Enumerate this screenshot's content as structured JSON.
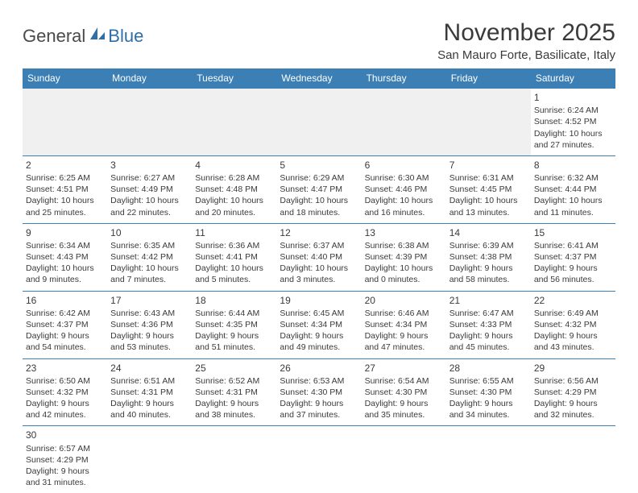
{
  "logo": {
    "text1": "General",
    "text2": "Blue"
  },
  "title": "November 2025",
  "location": "San Mauro Forte, Basilicate, Italy",
  "colors": {
    "header_bg": "#3b7fb5",
    "header_text": "#ffffff",
    "border": "#3b7fb5",
    "empty_bg": "#f0f0f0",
    "text": "#3a3a3a",
    "logo_blue": "#2f6fa8"
  },
  "day_names": [
    "Sunday",
    "Monday",
    "Tuesday",
    "Wednesday",
    "Thursday",
    "Friday",
    "Saturday"
  ],
  "leading_blanks": 6,
  "days": [
    {
      "n": 1,
      "sunrise": "6:24 AM",
      "sunset": "4:52 PM",
      "daylight": "10 hours and 27 minutes."
    },
    {
      "n": 2,
      "sunrise": "6:25 AM",
      "sunset": "4:51 PM",
      "daylight": "10 hours and 25 minutes."
    },
    {
      "n": 3,
      "sunrise": "6:27 AM",
      "sunset": "4:49 PM",
      "daylight": "10 hours and 22 minutes."
    },
    {
      "n": 4,
      "sunrise": "6:28 AM",
      "sunset": "4:48 PM",
      "daylight": "10 hours and 20 minutes."
    },
    {
      "n": 5,
      "sunrise": "6:29 AM",
      "sunset": "4:47 PM",
      "daylight": "10 hours and 18 minutes."
    },
    {
      "n": 6,
      "sunrise": "6:30 AM",
      "sunset": "4:46 PM",
      "daylight": "10 hours and 16 minutes."
    },
    {
      "n": 7,
      "sunrise": "6:31 AM",
      "sunset": "4:45 PM",
      "daylight": "10 hours and 13 minutes."
    },
    {
      "n": 8,
      "sunrise": "6:32 AM",
      "sunset": "4:44 PM",
      "daylight": "10 hours and 11 minutes."
    },
    {
      "n": 9,
      "sunrise": "6:34 AM",
      "sunset": "4:43 PM",
      "daylight": "10 hours and 9 minutes."
    },
    {
      "n": 10,
      "sunrise": "6:35 AM",
      "sunset": "4:42 PM",
      "daylight": "10 hours and 7 minutes."
    },
    {
      "n": 11,
      "sunrise": "6:36 AM",
      "sunset": "4:41 PM",
      "daylight": "10 hours and 5 minutes."
    },
    {
      "n": 12,
      "sunrise": "6:37 AM",
      "sunset": "4:40 PM",
      "daylight": "10 hours and 3 minutes."
    },
    {
      "n": 13,
      "sunrise": "6:38 AM",
      "sunset": "4:39 PM",
      "daylight": "10 hours and 0 minutes."
    },
    {
      "n": 14,
      "sunrise": "6:39 AM",
      "sunset": "4:38 PM",
      "daylight": "9 hours and 58 minutes."
    },
    {
      "n": 15,
      "sunrise": "6:41 AM",
      "sunset": "4:37 PM",
      "daylight": "9 hours and 56 minutes."
    },
    {
      "n": 16,
      "sunrise": "6:42 AM",
      "sunset": "4:37 PM",
      "daylight": "9 hours and 54 minutes."
    },
    {
      "n": 17,
      "sunrise": "6:43 AM",
      "sunset": "4:36 PM",
      "daylight": "9 hours and 53 minutes."
    },
    {
      "n": 18,
      "sunrise": "6:44 AM",
      "sunset": "4:35 PM",
      "daylight": "9 hours and 51 minutes."
    },
    {
      "n": 19,
      "sunrise": "6:45 AM",
      "sunset": "4:34 PM",
      "daylight": "9 hours and 49 minutes."
    },
    {
      "n": 20,
      "sunrise": "6:46 AM",
      "sunset": "4:34 PM",
      "daylight": "9 hours and 47 minutes."
    },
    {
      "n": 21,
      "sunrise": "6:47 AM",
      "sunset": "4:33 PM",
      "daylight": "9 hours and 45 minutes."
    },
    {
      "n": 22,
      "sunrise": "6:49 AM",
      "sunset": "4:32 PM",
      "daylight": "9 hours and 43 minutes."
    },
    {
      "n": 23,
      "sunrise": "6:50 AM",
      "sunset": "4:32 PM",
      "daylight": "9 hours and 42 minutes."
    },
    {
      "n": 24,
      "sunrise": "6:51 AM",
      "sunset": "4:31 PM",
      "daylight": "9 hours and 40 minutes."
    },
    {
      "n": 25,
      "sunrise": "6:52 AM",
      "sunset": "4:31 PM",
      "daylight": "9 hours and 38 minutes."
    },
    {
      "n": 26,
      "sunrise": "6:53 AM",
      "sunset": "4:30 PM",
      "daylight": "9 hours and 37 minutes."
    },
    {
      "n": 27,
      "sunrise": "6:54 AM",
      "sunset": "4:30 PM",
      "daylight": "9 hours and 35 minutes."
    },
    {
      "n": 28,
      "sunrise": "6:55 AM",
      "sunset": "4:30 PM",
      "daylight": "9 hours and 34 minutes."
    },
    {
      "n": 29,
      "sunrise": "6:56 AM",
      "sunset": "4:29 PM",
      "daylight": "9 hours and 32 minutes."
    },
    {
      "n": 30,
      "sunrise": "6:57 AM",
      "sunset": "4:29 PM",
      "daylight": "9 hours and 31 minutes."
    }
  ],
  "labels": {
    "sunrise": "Sunrise:",
    "sunset": "Sunset:",
    "daylight": "Daylight:"
  }
}
